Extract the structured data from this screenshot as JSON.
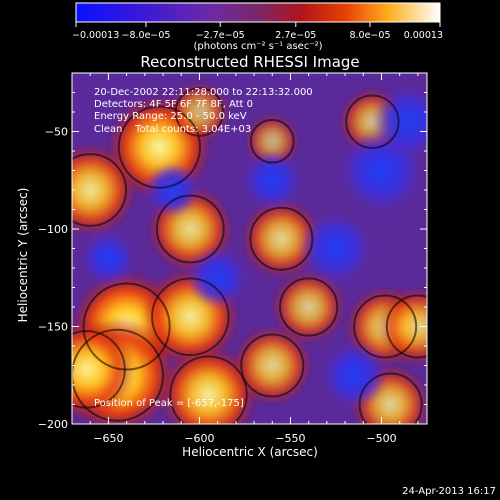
{
  "chart_data": {
    "type": "heatmap",
    "title": "Reconstructed RHESSI Image",
    "xlabel": "Heliocentric X (arcsec)",
    "ylabel": "Heliocentric Y (arcsec)",
    "xlim": [
      -670,
      -475
    ],
    "ylim": [
      -200,
      -20
    ],
    "x_ticks": [
      -650,
      -600,
      -550,
      -500
    ],
    "x_tick_labels": [
      "−650",
      "−600",
      "−550",
      "−500"
    ],
    "y_ticks": [
      -50,
      -100,
      -150,
      -200
    ],
    "y_tick_labels": [
      "−50",
      "−100",
      "−150",
      "−200"
    ],
    "annotations": [
      "20-Dec-2002 22:11:28.000 to 22:13:32.000",
      "Detectors: 4F 5F 6F 7F 8F, Att 0",
      "Energy Range: 25.0 - 50.0 keV",
      "Clean    Total counts: 3.04E+03"
    ],
    "peak_label": "Position of Peak = [-657,-175]",
    "peak": {
      "x": -657,
      "y": -175
    },
    "colorbar": {
      "min": -0.00013,
      "max": 0.00013,
      "ticks": [
        -0.00013,
        -8e-05,
        -2.7e-05,
        2.7e-05,
        8e-05,
        0.00013
      ],
      "tick_labels": [
        "−0.00013",
        "−8.0e−05",
        "−2.7e−05",
        "2.7e−05",
        "8.0e−05",
        "0.00013"
      ],
      "units": "(photons cm⁻² s⁻¹ asec⁻²)",
      "colormap": "blue-purple-red-yellow-white"
    },
    "features": [
      {
        "x": -640,
        "y": -150,
        "value": 0.00012
      },
      {
        "x": -645,
        "y": -175,
        "value": 0.00013
      },
      {
        "x": -662,
        "y": -172,
        "value": 0.0001
      },
      {
        "x": -622,
        "y": -58,
        "value": 0.00011
      },
      {
        "x": -660,
        "y": -80,
        "value": 9e-05
      },
      {
        "x": -605,
        "y": -145,
        "value": 0.0001
      },
      {
        "x": -595,
        "y": -185,
        "value": 0.0001
      },
      {
        "x": -605,
        "y": -100,
        "value": 8e-05
      },
      {
        "x": -555,
        "y": -105,
        "value": 7e-05
      },
      {
        "x": -560,
        "y": -170,
        "value": 7e-05
      },
      {
        "x": -540,
        "y": -140,
        "value": 6e-05
      },
      {
        "x": -498,
        "y": -150,
        "value": 7e-05
      },
      {
        "x": -495,
        "y": -190,
        "value": 7e-05
      },
      {
        "x": -480,
        "y": -150,
        "value": 7e-05
      },
      {
        "x": -505,
        "y": -45,
        "value": 5e-05
      },
      {
        "x": -560,
        "y": -55,
        "value": 3e-05
      },
      {
        "x": -600,
        "y": -40,
        "value": 4e-05
      },
      {
        "x": -500,
        "y": -70,
        "value": -8e-05
      },
      {
        "x": -485,
        "y": -45,
        "value": -6e-05
      },
      {
        "x": -525,
        "y": -110,
        "value": -6e-05
      },
      {
        "x": -515,
        "y": -175,
        "value": -5e-05
      },
      {
        "x": -615,
        "y": -80,
        "value": -3e-05
      },
      {
        "x": -590,
        "y": -125,
        "value": -4e-05
      },
      {
        "x": -650,
        "y": -115,
        "value": -3e-05
      },
      {
        "x": -560,
        "y": -75,
        "value": -4e-05
      }
    ]
  },
  "footer": {
    "date_stamp": "24-Apr-2013 16:17"
  }
}
